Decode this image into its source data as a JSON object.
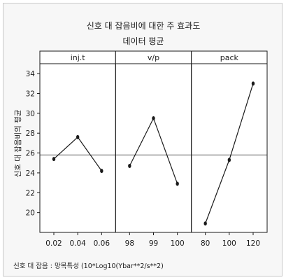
{
  "chart_data": {
    "type": "line",
    "title": "신호 대 잡음비에 대한 주 효과도",
    "subtitle": "데이터 평균",
    "ylabel": "신호 대 잡음비의 평균",
    "footnote": "신호 대 잡음 : 망목특성 (10*Log10(Ybar**2/s**2)",
    "ylim": [
      18,
      35
    ],
    "yticks": [
      20,
      22,
      24,
      26,
      28,
      30,
      32,
      34
    ],
    "reference_line": 25.8,
    "panels": [
      {
        "name": "inj.t",
        "categories": [
          "0.02",
          "0.04",
          "0.06"
        ],
        "values": [
          25.4,
          27.6,
          24.2
        ]
      },
      {
        "name": "v/p",
        "categories": [
          "98",
          "99",
          "100"
        ],
        "values": [
          24.7,
          29.5,
          22.9
        ]
      },
      {
        "name": "pack",
        "categories": [
          "80",
          "100",
          "120"
        ],
        "values": [
          18.9,
          25.3,
          33.0
        ]
      }
    ],
    "line_color": "#1a1a1a"
  }
}
